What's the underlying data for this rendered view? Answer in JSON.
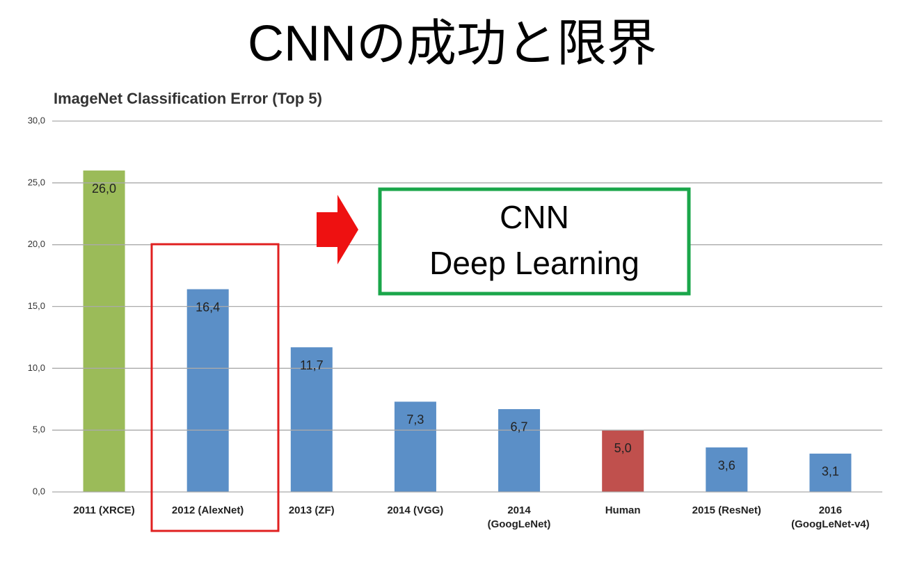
{
  "slide_title": "CNNの成功と限界",
  "chart_data": {
    "type": "bar",
    "title": "ImageNet Classification Error (Top 5)",
    "categories": [
      "2011 (XRCE)",
      "2012 (AlexNet)",
      "2013 (ZF)",
      "2014 (VGG)",
      "2014\n(GoogLeNet)",
      "Human",
      "2015 (ResNet)",
      "2016\n(GoogLeNet-v4)"
    ],
    "values": [
      26.0,
      16.4,
      11.7,
      7.3,
      6.7,
      5.0,
      3.6,
      3.1
    ],
    "value_labels": [
      "26,0",
      "16,4",
      "11,7",
      "7,3",
      "6,7",
      "5,0",
      "3,6",
      "3,1"
    ],
    "colors": [
      "#9bbb59",
      "#5b8fc7",
      "#5b8fc7",
      "#5b8fc7",
      "#5b8fc7",
      "#c0504d",
      "#5b8fc7",
      "#5b8fc7"
    ],
    "ylim": [
      0,
      30
    ],
    "yticks": [
      {
        "value": 0,
        "label": "0,0"
      },
      {
        "value": 5,
        "label": "5,0"
      },
      {
        "value": 10,
        "label": "10,0"
      },
      {
        "value": 15,
        "label": "15,0"
      },
      {
        "value": 20,
        "label": "20,0"
      },
      {
        "value": 25,
        "label": "25,0"
      },
      {
        "value": 30,
        "label": "30,0"
      }
    ],
    "grid": true,
    "annotation": [
      "CNN",
      "Deep Learning"
    ]
  }
}
